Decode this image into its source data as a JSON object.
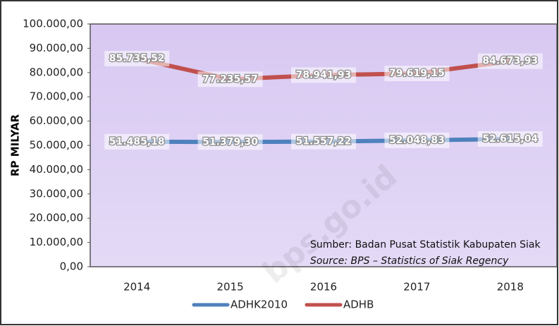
{
  "chart_data": {
    "type": "line",
    "y_label": "RP MILYAR",
    "categories": [
      "2014",
      "2015",
      "2016",
      "2017",
      "2018"
    ],
    "series": [
      {
        "name": "ADHK2010",
        "color": "#4f81bd",
        "values": [
          51485.18,
          51379.3,
          51557.22,
          52048.83,
          52615.04
        ],
        "value_labels": [
          "51.485,18",
          "51.379,30",
          "51.557,22",
          "52.048,83",
          "52.615,04"
        ]
      },
      {
        "name": "ADHB",
        "color": "#c0504d",
        "values": [
          85735.52,
          77235.57,
          78941.93,
          79619.15,
          84673.93
        ],
        "value_labels": [
          "85.735,52",
          "77.235,57",
          "78.941,93",
          "79.619,15",
          "84.673,93"
        ]
      }
    ],
    "ylim": [
      0,
      100000
    ],
    "yticks": [
      {
        "value": 0,
        "label": "0,00"
      },
      {
        "value": 10000,
        "label": "10.000,00"
      },
      {
        "value": 20000,
        "label": "20.000,00"
      },
      {
        "value": 30000,
        "label": "30.000,00"
      },
      {
        "value": 40000,
        "label": "40.000,00"
      },
      {
        "value": 50000,
        "label": "50.000,00"
      },
      {
        "value": 60000,
        "label": "60.000,00"
      },
      {
        "value": 70000,
        "label": "70.000,00"
      },
      {
        "value": 80000,
        "label": "80.000,00"
      },
      {
        "value": 90000,
        "label": "90.000,00"
      },
      {
        "value": 100000,
        "label": "100.000,00"
      }
    ],
    "legend": "bottom",
    "annotations": [
      "Sumber: Badan Pusat Statistik Kabupaten Siak",
      "Source: BPS – Statistics of Siak Regency"
    ],
    "watermark": "bps.go.id"
  }
}
